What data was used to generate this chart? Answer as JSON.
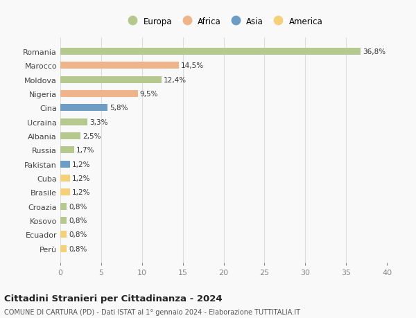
{
  "countries": [
    "Romania",
    "Marocco",
    "Moldova",
    "Nigeria",
    "Cina",
    "Ucraina",
    "Albania",
    "Russia",
    "Pakistan",
    "Cuba",
    "Brasile",
    "Croazia",
    "Kosovo",
    "Ecuador",
    "Perù"
  ],
  "values": [
    36.8,
    14.5,
    12.4,
    9.5,
    5.8,
    3.3,
    2.5,
    1.7,
    1.2,
    1.2,
    1.2,
    0.8,
    0.8,
    0.8,
    0.8
  ],
  "labels": [
    "36,8%",
    "14,5%",
    "12,4%",
    "9,5%",
    "5,8%",
    "3,3%",
    "2,5%",
    "1,7%",
    "1,2%",
    "1,2%",
    "1,2%",
    "0,8%",
    "0,8%",
    "0,8%",
    "0,8%"
  ],
  "continents": [
    "Europa",
    "Africa",
    "Europa",
    "Africa",
    "Asia",
    "Europa",
    "Europa",
    "Europa",
    "Asia",
    "America",
    "America",
    "Europa",
    "Europa",
    "America",
    "America"
  ],
  "continent_colors": {
    "Europa": "#b5c98e",
    "Africa": "#f0b48a",
    "Asia": "#6d9dc5",
    "America": "#f5d07a"
  },
  "legend_order": [
    "Europa",
    "Africa",
    "Asia",
    "America"
  ],
  "xlim": [
    0,
    40
  ],
  "xticks": [
    0,
    5,
    10,
    15,
    20,
    25,
    30,
    35,
    40
  ],
  "title": "Cittadini Stranieri per Cittadinanza - 2024",
  "subtitle": "COMUNE DI CARTURA (PD) - Dati ISTAT al 1° gennaio 2024 - Elaborazione TUTTITALIA.IT",
  "background_color": "#f9f9f9",
  "grid_color": "#dddddd",
  "bar_height": 0.5,
  "label_fontsize": 7.5,
  "ytick_fontsize": 8.0,
  "xtick_fontsize": 8.0
}
